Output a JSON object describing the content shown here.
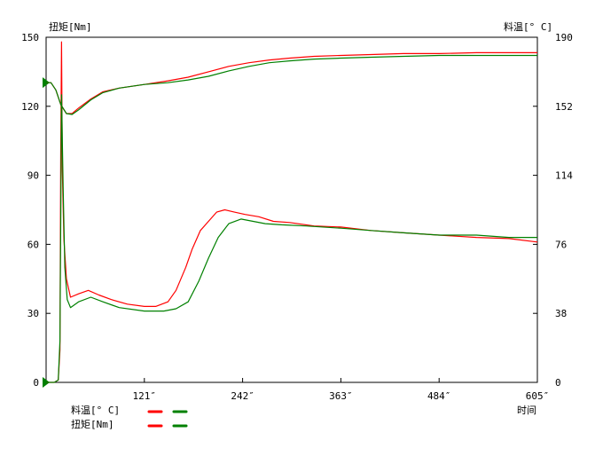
{
  "chart_data": {
    "type": "line",
    "left_axis": {
      "title": "扭矩[Nm]",
      "min": 0,
      "max": 150,
      "ticks": [
        0,
        30,
        60,
        90,
        120,
        150
      ]
    },
    "right_axis": {
      "title": "料温[° C]",
      "min": 0,
      "max": 190,
      "ticks": [
        0,
        38,
        76,
        114,
        152,
        190
      ]
    },
    "x_axis": {
      "title": "时间",
      "min": 0,
      "max": 605,
      "ticks": [
        121,
        242,
        363,
        484,
        605
      ],
      "tick_labels": [
        "121″",
        "242″",
        "363″",
        "484″",
        "605″"
      ]
    },
    "grid": false,
    "legend": {
      "position": "bottom-left",
      "rows": [
        "料温[° C]",
        "扭矩[Nm]"
      ],
      "colors": [
        "#ff0000",
        "#008000"
      ]
    },
    "series": [
      {
        "quantity": "料温",
        "axis": "right",
        "color": "#ff0000",
        "points": [
          [
            0,
            165
          ],
          [
            6,
            165
          ],
          [
            12,
            161
          ],
          [
            18,
            153
          ],
          [
            25,
            148
          ],
          [
            32,
            148
          ],
          [
            40,
            151
          ],
          [
            55,
            156
          ],
          [
            70,
            160
          ],
          [
            90,
            162
          ],
          [
            121,
            164
          ],
          [
            150,
            166
          ],
          [
            175,
            168
          ],
          [
            200,
            171
          ],
          [
            225,
            174
          ],
          [
            250,
            176
          ],
          [
            275,
            177.5
          ],
          [
            300,
            178.5
          ],
          [
            330,
            179.5
          ],
          [
            363,
            180
          ],
          [
            400,
            180.5
          ],
          [
            440,
            181
          ],
          [
            484,
            181
          ],
          [
            530,
            181.5
          ],
          [
            570,
            181.5
          ],
          [
            605,
            181.5
          ]
        ]
      },
      {
        "quantity": "扭矩",
        "axis": "left",
        "color": "#ff0000",
        "points": [
          [
            0,
            0
          ],
          [
            10,
            0
          ],
          [
            15,
            1
          ],
          [
            17,
            14
          ],
          [
            18,
            100
          ],
          [
            19,
            148
          ],
          [
            20,
            92
          ],
          [
            22,
            62
          ],
          [
            25,
            45
          ],
          [
            30,
            37
          ],
          [
            40,
            38.5
          ],
          [
            52,
            40
          ],
          [
            65,
            38
          ],
          [
            80,
            36
          ],
          [
            100,
            34
          ],
          [
            121,
            33
          ],
          [
            135,
            33
          ],
          [
            150,
            35
          ],
          [
            160,
            40
          ],
          [
            172,
            50
          ],
          [
            180,
            58
          ],
          [
            190,
            66
          ],
          [
            200,
            70
          ],
          [
            210,
            74
          ],
          [
            220,
            75
          ],
          [
            232,
            74
          ],
          [
            245,
            73
          ],
          [
            262,
            72
          ],
          [
            280,
            70
          ],
          [
            300,
            69.5
          ],
          [
            330,
            68
          ],
          [
            363,
            67.5
          ],
          [
            400,
            66
          ],
          [
            440,
            65
          ],
          [
            484,
            64
          ],
          [
            530,
            63
          ],
          [
            570,
            62.5
          ],
          [
            605,
            61
          ]
        ]
      },
      {
        "quantity": "料温",
        "axis": "right",
        "color": "#008000",
        "points": [
          [
            0,
            165
          ],
          [
            6,
            165
          ],
          [
            12,
            161
          ],
          [
            18,
            153
          ],
          [
            25,
            148
          ],
          [
            32,
            147.5
          ],
          [
            40,
            150
          ],
          [
            55,
            155.5
          ],
          [
            70,
            159.5
          ],
          [
            90,
            162
          ],
          [
            121,
            164
          ],
          [
            150,
            165
          ],
          [
            175,
            166.5
          ],
          [
            200,
            168.5
          ],
          [
            225,
            171.5
          ],
          [
            250,
            174
          ],
          [
            275,
            176
          ],
          [
            300,
            177
          ],
          [
            330,
            178
          ],
          [
            363,
            178.5
          ],
          [
            400,
            179
          ],
          [
            440,
            179.5
          ],
          [
            484,
            180
          ],
          [
            530,
            180
          ],
          [
            570,
            180
          ],
          [
            605,
            180
          ]
        ]
      },
      {
        "quantity": "扭矩",
        "axis": "left",
        "color": "#008000",
        "points": [
          [
            0,
            0
          ],
          [
            10,
            0
          ],
          [
            15,
            1
          ],
          [
            17,
            18
          ],
          [
            18,
            70
          ],
          [
            19,
            125
          ],
          [
            21,
            85
          ],
          [
            23,
            50
          ],
          [
            26,
            36
          ],
          [
            30,
            32.5
          ],
          [
            40,
            35
          ],
          [
            55,
            37
          ],
          [
            70,
            35
          ],
          [
            90,
            32.5
          ],
          [
            121,
            31
          ],
          [
            145,
            31
          ],
          [
            160,
            32
          ],
          [
            175,
            35
          ],
          [
            188,
            44
          ],
          [
            200,
            54
          ],
          [
            212,
            63
          ],
          [
            225,
            69
          ],
          [
            240,
            71
          ],
          [
            255,
            70
          ],
          [
            270,
            69
          ],
          [
            290,
            68.5
          ],
          [
            320,
            68
          ],
          [
            363,
            67
          ],
          [
            400,
            66
          ],
          [
            440,
            65
          ],
          [
            484,
            64
          ],
          [
            530,
            64
          ],
          [
            570,
            63
          ],
          [
            605,
            63
          ]
        ]
      }
    ]
  }
}
